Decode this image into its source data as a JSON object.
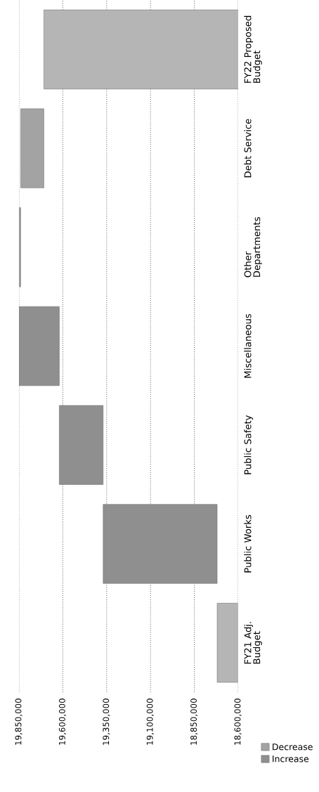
{
  "chart_data": {
    "type": "bar",
    "orientation": "horizontal",
    "categories": [
      "FY22 Proposed\nBudget",
      "Debt Service",
      "Other\nDepartments",
      "Miscellaneous",
      "Public Safety",
      "Public Works",
      "FY21 Adj.\nBudget"
    ],
    "series": [
      {
        "name": "Decrease",
        "color": "#a3a3a3",
        "base": [
          null,
          19840000,
          19850000,
          null,
          null,
          null,
          null
        ],
        "values": [
          null,
          -132000,
          -10000,
          null,
          null,
          null,
          null
        ]
      },
      {
        "name": "Increase",
        "color": "#8f8f8f",
        "base": [
          null,
          null,
          null,
          19620000,
          19370000,
          18720000,
          null
        ],
        "values": [
          null,
          null,
          null,
          230000,
          250000,
          650000,
          null
        ]
      },
      {
        "color": "#b5b5b5",
        "values": [
          19708000,
          null,
          null,
          null,
          null,
          null,
          18720000
        ]
      }
    ],
    "xlim": [
      19850000,
      18600000
    ],
    "xticks": [
      {
        "value": 19850000,
        "label": "19,850,000"
      },
      {
        "value": 19600000,
        "label": "19,600,000"
      },
      {
        "value": 19350000,
        "label": "19,350,000"
      },
      {
        "value": 19100000,
        "label": "19,100,000"
      },
      {
        "value": 18850000,
        "label": "18,850,000"
      },
      {
        "value": 18600000,
        "label": "18,600,000"
      }
    ],
    "grid": "x",
    "legend": "right"
  }
}
